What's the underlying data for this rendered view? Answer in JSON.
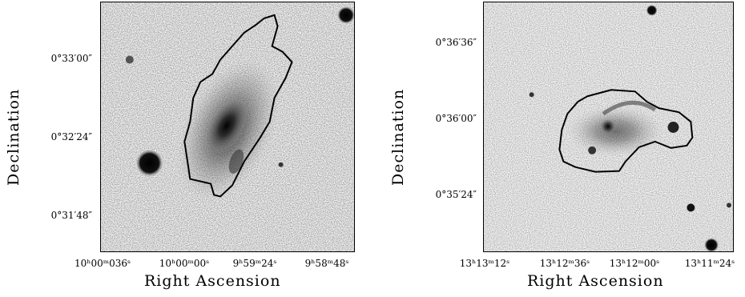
{
  "panels": [
    {
      "ylabel": "Declination",
      "xlabel": "Right Ascension",
      "dec_ticks": [
        "0°33′00″",
        "0°32′24″",
        "0°31′48″"
      ],
      "ra_ticks": [
        "10ʰ00ᵐ036ˢ",
        "10ʰ00ᵐ00ˢ",
        "9ʰ59ᵐ24ˢ",
        "9ʰ58ᵐ48ˢ"
      ]
    },
    {
      "ylabel": "Declination",
      "xlabel": "Right Ascension",
      "dec_ticks": [
        "0°36′36″",
        "0°36′00″",
        "0°35′24″"
      ],
      "ra_ticks": [
        "13ʰ13ᵐ12ˢ",
        "13ʰ12ᵐ36ˢ",
        "13ʰ12ᵐ00ˢ",
        "13ʰ11ᵐ24ˢ"
      ]
    }
  ]
}
